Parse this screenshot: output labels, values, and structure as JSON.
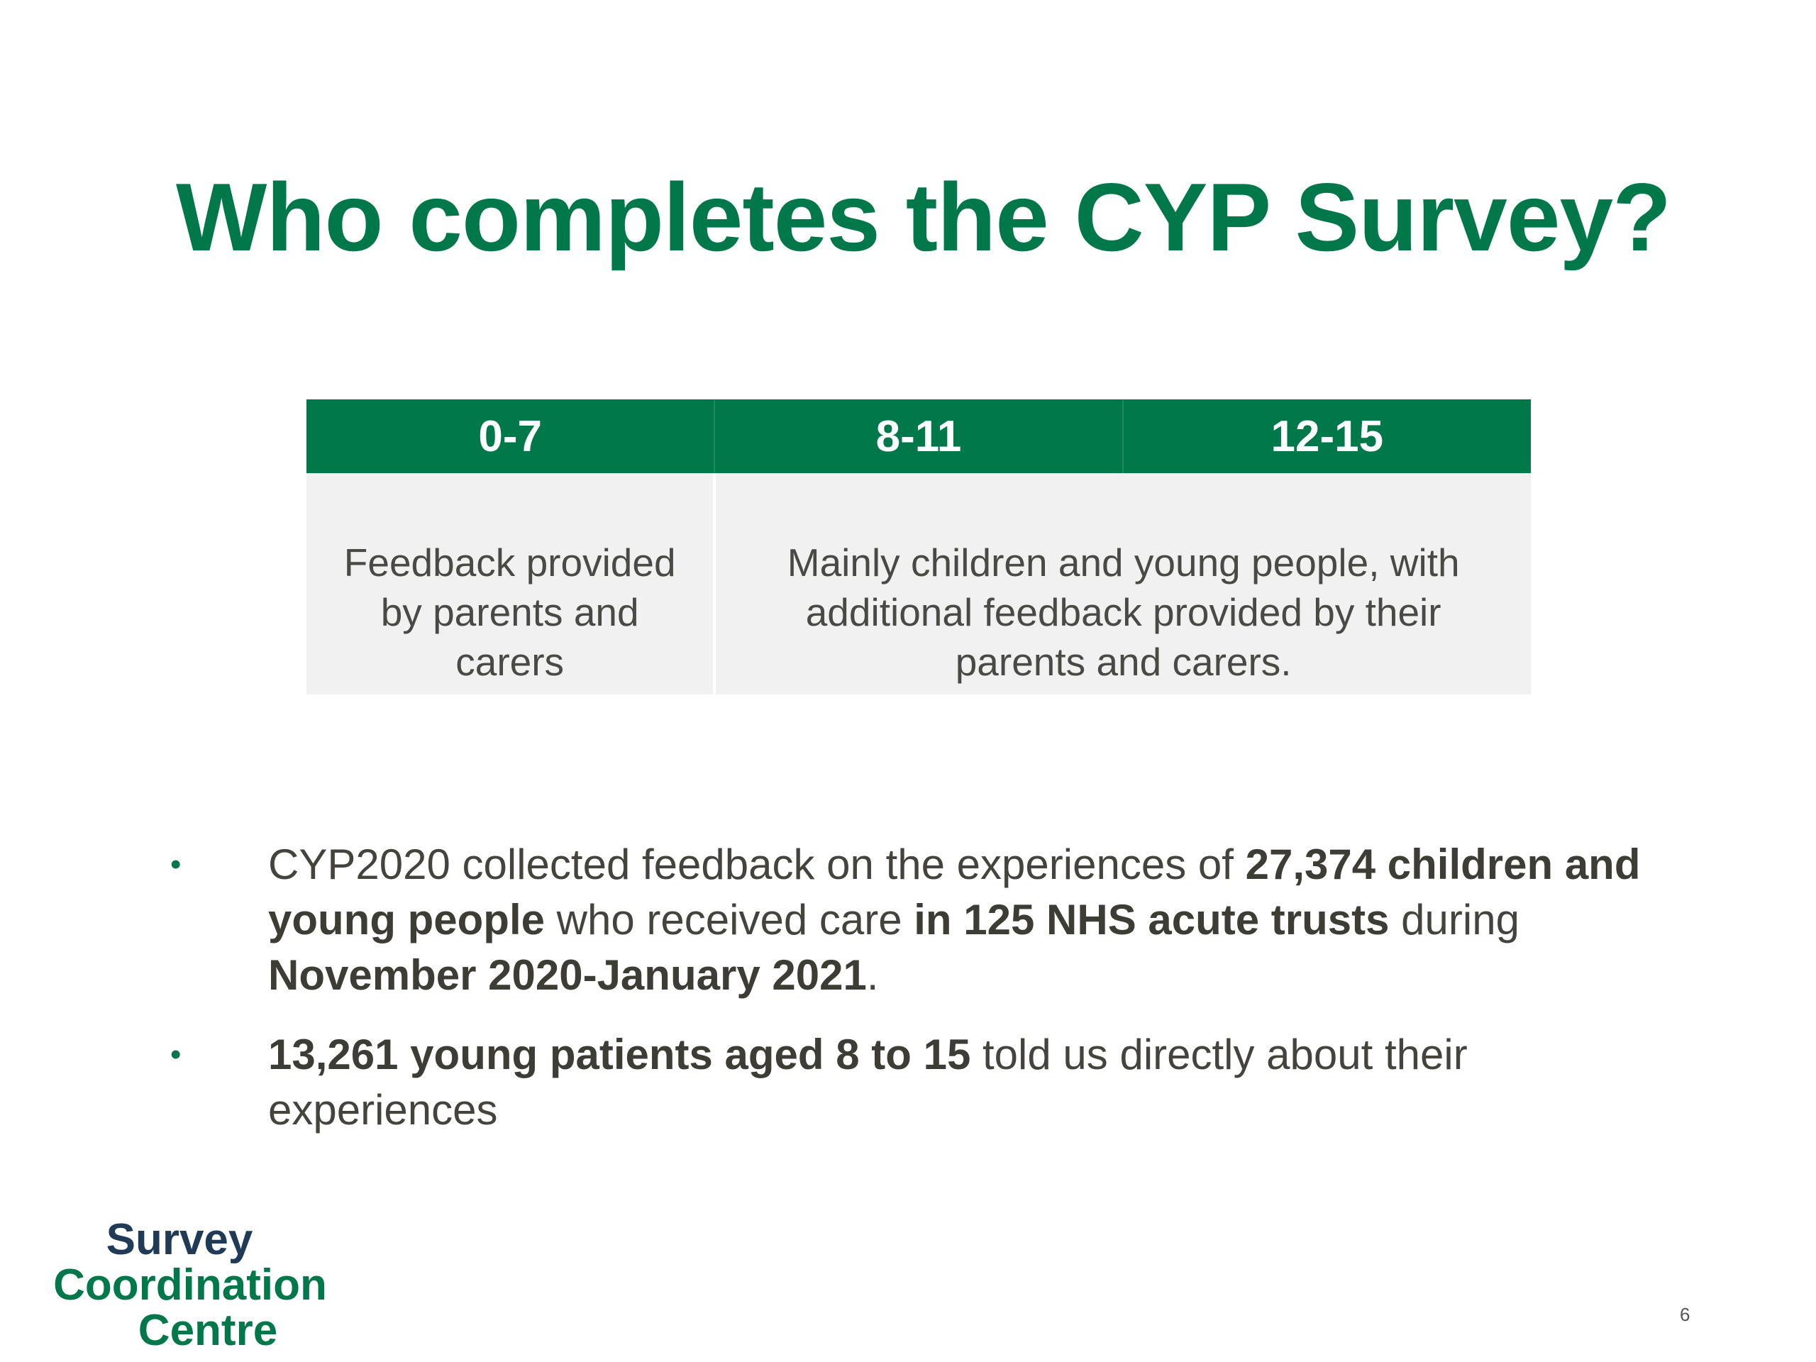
{
  "title": "Who completes the CYP Survey?",
  "table": {
    "headers": [
      "0-7",
      "8-11",
      "12-15"
    ],
    "cells": [
      "Feedback provided by parents and carers",
      "Mainly children and young people, with additional feedback provided by their parents and carers."
    ]
  },
  "bullets": [
    {
      "parts": [
        {
          "text": "CYP2020 collected feedback on the experiences of "
        },
        {
          "text": "27,374 children and young people",
          "bold": true
        },
        {
          "text": " who received care "
        },
        {
          "text": "in 125 NHS acute trusts",
          "bold": true
        },
        {
          "text": " during "
        },
        {
          "text": "November 2020-January 2021",
          "bold": true
        },
        {
          "text": "."
        }
      ]
    },
    {
      "parts": [
        {
          "text": "13,261 young patients aged 8 to 15",
          "bold": true
        },
        {
          "text": " told us directly about their experiences"
        }
      ]
    }
  ],
  "logo": {
    "line1": "Survey",
    "line2": "Coordination",
    "line3": "Centre"
  },
  "page_number": "6",
  "colors": {
    "brand_green": "#00784a",
    "logo_navy": "#1f3b57"
  }
}
